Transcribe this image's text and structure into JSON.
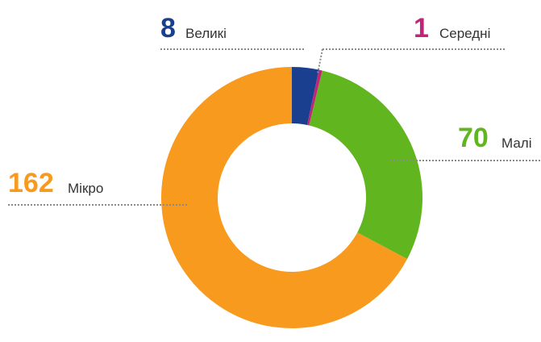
{
  "chart_data": {
    "type": "pie",
    "donut": true,
    "legend": "none",
    "categories": [
      "Великі",
      "Середні",
      "Малі",
      "Мікро"
    ],
    "values": [
      8,
      1,
      70,
      162
    ],
    "series": [
      {
        "values": [
          8,
          1,
          70,
          162
        ]
      }
    ],
    "colors": {
      "Великі": "#1a3f8f",
      "Середні": "#c0257a",
      "Малі": "#61b51e",
      "Мікро": "#f79a1e"
    },
    "data_labels": [
      {
        "category": "Великі",
        "value": "8",
        "label": "Великі"
      },
      {
        "category": "Середні",
        "value": "1",
        "label": "Середні"
      },
      {
        "category": "Малі",
        "value": "70",
        "label": "Малі"
      },
      {
        "category": "Мікро",
        "value": "162",
        "label": "Мікро"
      }
    ]
  }
}
